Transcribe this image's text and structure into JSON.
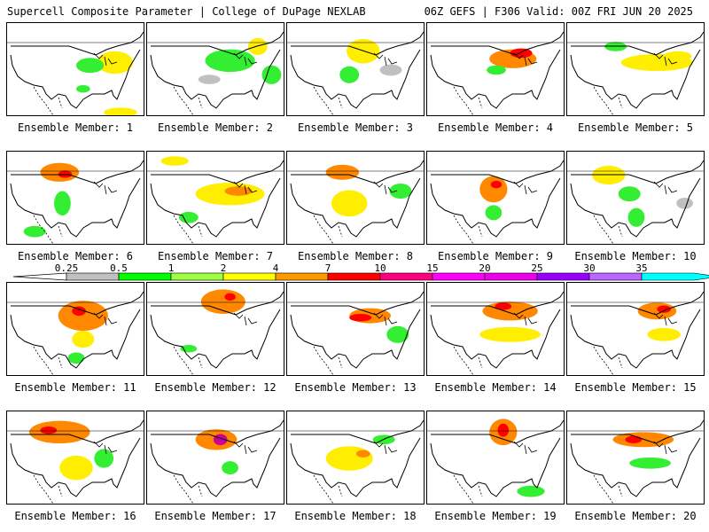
{
  "header": {
    "left": "Supercell Composite Parameter | College of DuPage NEXLAB",
    "right": "06Z GEFS | F306 Valid: 00Z FRI JUN 20 2025"
  },
  "caption_prefix": "Ensemble Member:",
  "members": [
    {
      "n": "1",
      "blobs": [
        [
          0.78,
          0.42,
          0.13,
          0.12,
          2
        ],
        [
          0.6,
          0.45,
          0.1,
          0.08,
          1
        ],
        [
          0.82,
          0.95,
          0.12,
          0.05,
          2
        ],
        [
          0.55,
          0.7,
          0.05,
          0.04,
          1
        ]
      ]
    },
    {
      "n": "2",
      "blobs": [
        [
          0.6,
          0.4,
          0.18,
          0.12,
          1
        ],
        [
          0.8,
          0.25,
          0.07,
          0.09,
          2
        ],
        [
          0.9,
          0.55,
          0.07,
          0.1,
          1
        ],
        [
          0.45,
          0.6,
          0.08,
          0.05,
          0
        ]
      ]
    },
    {
      "n": "3",
      "blobs": [
        [
          0.55,
          0.3,
          0.12,
          0.13,
          2
        ],
        [
          0.45,
          0.55,
          0.07,
          0.09,
          1
        ],
        [
          0.75,
          0.5,
          0.08,
          0.06,
          0
        ]
      ]
    },
    {
      "n": "4",
      "blobs": [
        [
          0.62,
          0.38,
          0.17,
          0.1,
          3
        ],
        [
          0.68,
          0.32,
          0.08,
          0.05,
          4
        ],
        [
          0.5,
          0.5,
          0.07,
          0.05,
          1
        ]
      ]
    },
    {
      "n": "5",
      "blobs": [
        [
          0.65,
          0.42,
          0.26,
          0.09,
          2
        ],
        [
          0.35,
          0.25,
          0.08,
          0.05,
          1
        ],
        [
          0.8,
          0.35,
          0.1,
          0.05,
          2
        ]
      ]
    },
    {
      "n": "6",
      "blobs": [
        [
          0.38,
          0.22,
          0.14,
          0.1,
          3
        ],
        [
          0.42,
          0.24,
          0.05,
          0.04,
          4
        ],
        [
          0.4,
          0.55,
          0.06,
          0.13,
          1
        ],
        [
          0.2,
          0.85,
          0.08,
          0.06,
          1
        ]
      ]
    },
    {
      "n": "7",
      "blobs": [
        [
          0.6,
          0.45,
          0.25,
          0.12,
          2
        ],
        [
          0.66,
          0.42,
          0.1,
          0.05,
          3
        ],
        [
          0.2,
          0.1,
          0.1,
          0.05,
          2
        ],
        [
          0.3,
          0.7,
          0.07,
          0.06,
          1
        ]
      ]
    },
    {
      "n": "8",
      "blobs": [
        [
          0.4,
          0.22,
          0.12,
          0.08,
          3
        ],
        [
          0.45,
          0.55,
          0.13,
          0.14,
          2
        ],
        [
          0.82,
          0.42,
          0.08,
          0.08,
          1
        ]
      ]
    },
    {
      "n": "9",
      "blobs": [
        [
          0.48,
          0.4,
          0.1,
          0.14,
          3
        ],
        [
          0.5,
          0.35,
          0.04,
          0.04,
          4
        ],
        [
          0.48,
          0.65,
          0.06,
          0.08,
          1
        ]
      ]
    },
    {
      "n": "10",
      "blobs": [
        [
          0.3,
          0.25,
          0.12,
          0.1,
          2
        ],
        [
          0.45,
          0.45,
          0.08,
          0.08,
          1
        ],
        [
          0.5,
          0.7,
          0.06,
          0.1,
          1
        ],
        [
          0.85,
          0.55,
          0.06,
          0.06,
          0
        ]
      ]
    },
    {
      "n": "11",
      "blobs": [
        [
          0.55,
          0.35,
          0.18,
          0.16,
          3
        ],
        [
          0.52,
          0.3,
          0.05,
          0.05,
          4
        ],
        [
          0.55,
          0.6,
          0.08,
          0.09,
          2
        ],
        [
          0.5,
          0.8,
          0.06,
          0.06,
          1
        ]
      ]
    },
    {
      "n": "12",
      "blobs": [
        [
          0.55,
          0.2,
          0.16,
          0.13,
          3
        ],
        [
          0.6,
          0.15,
          0.04,
          0.04,
          4
        ],
        [
          0.3,
          0.7,
          0.06,
          0.04,
          1
        ]
      ]
    },
    {
      "n": "13",
      "blobs": [
        [
          0.6,
          0.35,
          0.15,
          0.08,
          3
        ],
        [
          0.53,
          0.37,
          0.08,
          0.04,
          4
        ],
        [
          0.8,
          0.55,
          0.08,
          0.09,
          1
        ]
      ]
    },
    {
      "n": "14",
      "blobs": [
        [
          0.6,
          0.3,
          0.2,
          0.1,
          3
        ],
        [
          0.55,
          0.25,
          0.06,
          0.04,
          4
        ],
        [
          0.6,
          0.55,
          0.22,
          0.08,
          2
        ]
      ]
    },
    {
      "n": "15",
      "blobs": [
        [
          0.65,
          0.3,
          0.14,
          0.09,
          3
        ],
        [
          0.7,
          0.28,
          0.05,
          0.04,
          4
        ],
        [
          0.7,
          0.55,
          0.12,
          0.07,
          2
        ]
      ]
    },
    {
      "n": "16",
      "blobs": [
        [
          0.38,
          0.22,
          0.22,
          0.12,
          3
        ],
        [
          0.3,
          0.2,
          0.06,
          0.04,
          4
        ],
        [
          0.5,
          0.6,
          0.12,
          0.13,
          2
        ],
        [
          0.7,
          0.5,
          0.07,
          0.1,
          1
        ]
      ]
    },
    {
      "n": "17",
      "blobs": [
        [
          0.5,
          0.3,
          0.15,
          0.11,
          3
        ],
        [
          0.53,
          0.3,
          0.05,
          0.06,
          5
        ],
        [
          0.6,
          0.6,
          0.06,
          0.07,
          1
        ]
      ]
    },
    {
      "n": "18",
      "blobs": [
        [
          0.45,
          0.5,
          0.17,
          0.13,
          2
        ],
        [
          0.55,
          0.45,
          0.05,
          0.04,
          3
        ],
        [
          0.7,
          0.3,
          0.08,
          0.05,
          1
        ]
      ]
    },
    {
      "n": "19",
      "blobs": [
        [
          0.55,
          0.22,
          0.1,
          0.14,
          3
        ],
        [
          0.55,
          0.2,
          0.04,
          0.07,
          4
        ],
        [
          0.75,
          0.85,
          0.1,
          0.06,
          1
        ]
      ]
    },
    {
      "n": "20",
      "blobs": [
        [
          0.55,
          0.3,
          0.22,
          0.08,
          3
        ],
        [
          0.48,
          0.3,
          0.06,
          0.04,
          4
        ],
        [
          0.6,
          0.55,
          0.15,
          0.06,
          1
        ]
      ]
    }
  ],
  "colorbar": {
    "labels": [
      "0.25",
      "0.5",
      "1",
      "2",
      "4",
      "7",
      "10",
      "15",
      "20",
      "25",
      "30",
      "35"
    ],
    "colors": [
      "#c0c0c0",
      "#00ff00",
      "#a0ff40",
      "#ffff00",
      "#ff9900",
      "#ff0000",
      "#ff0080",
      "#ff00ff",
      "#ee00ee",
      "#9900ff",
      "#bb66ff",
      "#00ffff"
    ]
  },
  "fill_levels": [
    "#c0c0c0",
    "#33ee33",
    "#ffee00",
    "#ff8800",
    "#ff0000",
    "#cc0099"
  ]
}
